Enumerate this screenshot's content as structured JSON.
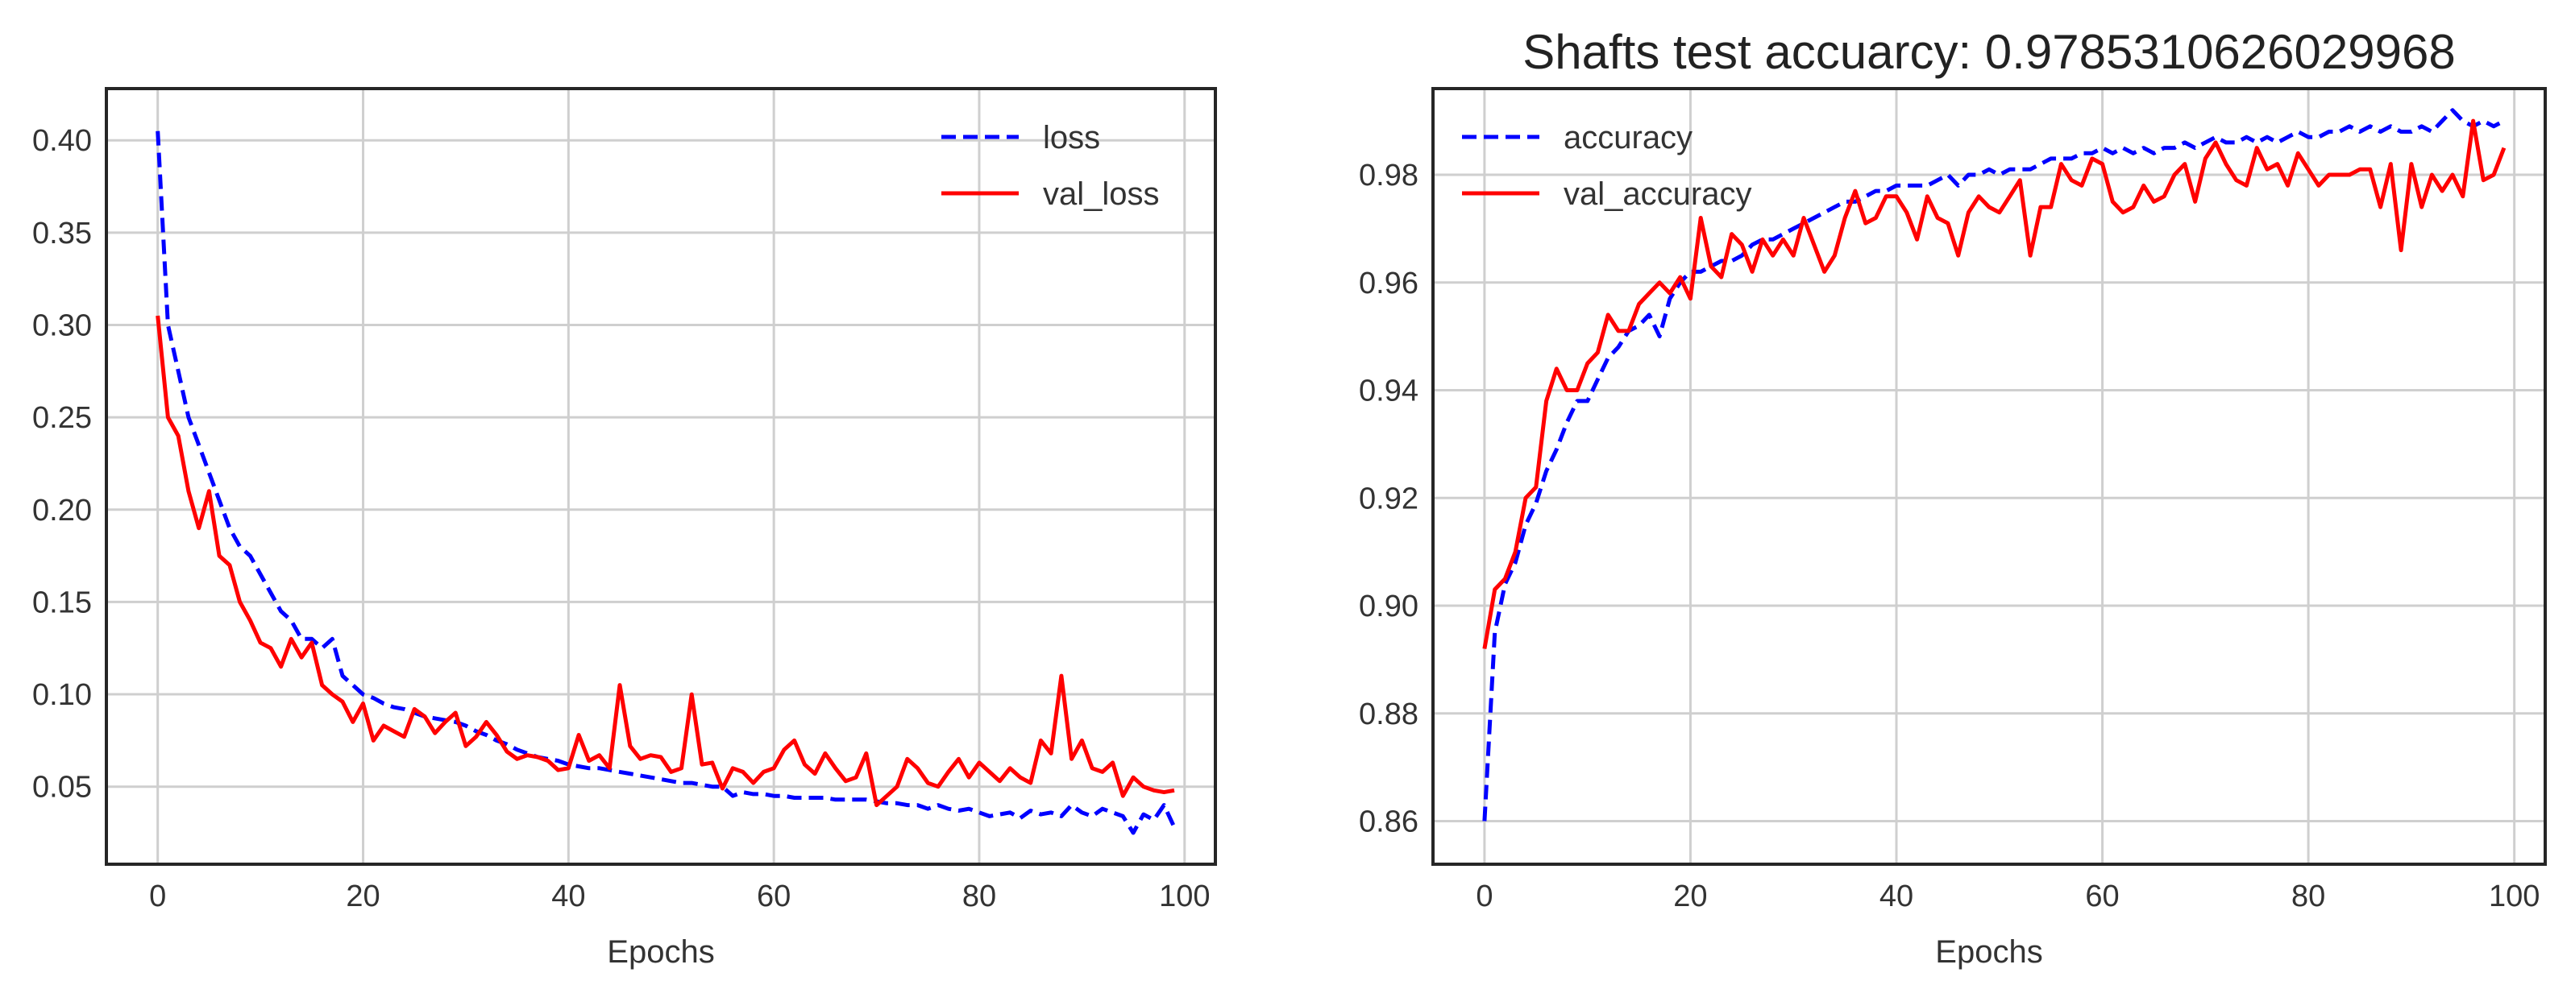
{
  "chart_data": [
    {
      "type": "line",
      "title": "",
      "xlabel": "Epochs",
      "ylabel": "",
      "xlim": [
        -5,
        103
      ],
      "ylim": [
        0.008,
        0.428
      ],
      "xticks": [
        0,
        20,
        40,
        60,
        80,
        100
      ],
      "yticks": [
        0.05,
        0.1,
        0.15,
        0.2,
        0.25,
        0.3,
        0.35,
        0.4
      ],
      "tick_format": 2,
      "grid": true,
      "legend_position": "top-right",
      "series": [
        {
          "name": "loss",
          "color": "#0000ff",
          "dash": "dashed",
          "x": [
            0,
            1,
            2,
            3,
            4,
            5,
            6,
            7,
            8,
            9,
            10,
            11,
            12,
            13,
            14,
            15,
            16,
            17,
            18,
            19,
            20,
            21,
            22,
            23,
            24,
            25,
            26,
            27,
            28,
            29,
            30,
            31,
            32,
            33,
            34,
            35,
            36,
            37,
            38,
            39,
            40,
            41,
            42,
            43,
            44,
            45,
            46,
            47,
            48,
            49,
            50,
            51,
            52,
            53,
            54,
            55,
            56,
            57,
            58,
            59,
            60,
            61,
            62,
            63,
            64,
            65,
            66,
            67,
            68,
            69,
            70,
            71,
            72,
            73,
            74,
            75,
            76,
            77,
            78,
            79,
            80,
            81,
            82,
            83,
            84,
            85,
            86,
            87,
            88,
            89,
            90,
            91,
            92,
            93,
            94,
            95,
            96,
            97,
            98,
            99
          ],
          "values": [
            0.405,
            0.3,
            0.275,
            0.25,
            0.235,
            0.22,
            0.205,
            0.19,
            0.18,
            0.175,
            0.165,
            0.155,
            0.145,
            0.14,
            0.13,
            0.13,
            0.125,
            0.13,
            0.11,
            0.105,
            0.1,
            0.098,
            0.095,
            0.093,
            0.092,
            0.09,
            0.088,
            0.087,
            0.086,
            0.085,
            0.083,
            0.08,
            0.078,
            0.075,
            0.073,
            0.07,
            0.068,
            0.066,
            0.065,
            0.064,
            0.062,
            0.061,
            0.06,
            0.06,
            0.059,
            0.058,
            0.057,
            0.056,
            0.055,
            0.054,
            0.053,
            0.052,
            0.052,
            0.051,
            0.05,
            0.05,
            0.045,
            0.047,
            0.046,
            0.046,
            0.045,
            0.045,
            0.044,
            0.044,
            0.044,
            0.044,
            0.043,
            0.043,
            0.043,
            0.043,
            0.042,
            0.041,
            0.041,
            0.04,
            0.04,
            0.038,
            0.04,
            0.038,
            0.037,
            0.038,
            0.036,
            0.034,
            0.035,
            0.036,
            0.033,
            0.037,
            0.035,
            0.036,
            0.034,
            0.04,
            0.036,
            0.034,
            0.038,
            0.036,
            0.034,
            0.025,
            0.035,
            0.032,
            0.04,
            0.028
          ]
        },
        {
          "name": "val_loss",
          "color": "#ff0000",
          "dash": "solid",
          "x": [
            0,
            1,
            2,
            3,
            4,
            5,
            6,
            7,
            8,
            9,
            10,
            11,
            12,
            13,
            14,
            15,
            16,
            17,
            18,
            19,
            20,
            21,
            22,
            23,
            24,
            25,
            26,
            27,
            28,
            29,
            30,
            31,
            32,
            33,
            34,
            35,
            36,
            37,
            38,
            39,
            40,
            41,
            42,
            43,
            44,
            45,
            46,
            47,
            48,
            49,
            50,
            51,
            52,
            53,
            54,
            55,
            56,
            57,
            58,
            59,
            60,
            61,
            62,
            63,
            64,
            65,
            66,
            67,
            68,
            69,
            70,
            71,
            72,
            73,
            74,
            75,
            76,
            77,
            78,
            79,
            80,
            81,
            82,
            83,
            84,
            85,
            86,
            87,
            88,
            89,
            90,
            91,
            92,
            93,
            94,
            95,
            96,
            97,
            98,
            99
          ],
          "values": [
            0.305,
            0.25,
            0.24,
            0.21,
            0.19,
            0.21,
            0.175,
            0.17,
            0.15,
            0.14,
            0.128,
            0.125,
            0.115,
            0.13,
            0.12,
            0.128,
            0.105,
            0.1,
            0.096,
            0.085,
            0.095,
            0.075,
            0.083,
            0.08,
            0.077,
            0.092,
            0.088,
            0.079,
            0.085,
            0.09,
            0.072,
            0.077,
            0.085,
            0.078,
            0.069,
            0.065,
            0.067,
            0.066,
            0.064,
            0.059,
            0.06,
            0.078,
            0.064,
            0.067,
            0.06,
            0.105,
            0.072,
            0.065,
            0.067,
            0.066,
            0.058,
            0.06,
            0.1,
            0.062,
            0.063,
            0.049,
            0.06,
            0.058,
            0.052,
            0.058,
            0.06,
            0.07,
            0.075,
            0.062,
            0.057,
            0.068,
            0.06,
            0.053,
            0.055,
            0.068,
            0.04,
            0.045,
            0.05,
            0.065,
            0.06,
            0.052,
            0.05,
            0.058,
            0.065,
            0.055,
            0.063,
            0.058,
            0.053,
            0.06,
            0.055,
            0.052,
            0.075,
            0.068,
            0.11,
            0.065,
            0.075,
            0.06,
            0.058,
            0.063,
            0.045,
            0.055,
            0.05,
            0.048,
            0.047,
            0.048
          ]
        }
      ]
    },
    {
      "type": "line",
      "title": "Shafts test accuarcy: 0.9785310626029968",
      "xlabel": "Epochs",
      "ylabel": "",
      "xlim": [
        -5,
        103
      ],
      "ylim": [
        0.852,
        0.996
      ],
      "xticks": [
        0,
        20,
        40,
        60,
        80,
        100
      ],
      "yticks": [
        0.86,
        0.88,
        0.9,
        0.92,
        0.94,
        0.96,
        0.98
      ],
      "tick_format": 2,
      "grid": true,
      "legend_position": "top-left",
      "series": [
        {
          "name": "accuracy",
          "color": "#0000ff",
          "dash": "dashed",
          "x": [
            0,
            1,
            2,
            3,
            4,
            5,
            6,
            7,
            8,
            9,
            10,
            11,
            12,
            13,
            14,
            15,
            16,
            17,
            18,
            19,
            20,
            21,
            22,
            23,
            24,
            25,
            26,
            27,
            28,
            29,
            30,
            31,
            32,
            33,
            34,
            35,
            36,
            37,
            38,
            39,
            40,
            41,
            42,
            43,
            44,
            45,
            46,
            47,
            48,
            49,
            50,
            51,
            52,
            53,
            54,
            55,
            56,
            57,
            58,
            59,
            60,
            61,
            62,
            63,
            64,
            65,
            66,
            67,
            68,
            69,
            70,
            71,
            72,
            73,
            74,
            75,
            76,
            77,
            78,
            79,
            80,
            81,
            82,
            83,
            84,
            85,
            86,
            87,
            88,
            89,
            90,
            91,
            92,
            93,
            94,
            95,
            96,
            97,
            98,
            99
          ],
          "values": [
            0.86,
            0.895,
            0.904,
            0.908,
            0.915,
            0.919,
            0.925,
            0.929,
            0.934,
            0.938,
            0.938,
            0.942,
            0.946,
            0.948,
            0.951,
            0.952,
            0.954,
            0.95,
            0.957,
            0.96,
            0.962,
            0.962,
            0.963,
            0.964,
            0.964,
            0.965,
            0.967,
            0.968,
            0.968,
            0.969,
            0.97,
            0.971,
            0.972,
            0.973,
            0.974,
            0.975,
            0.975,
            0.976,
            0.977,
            0.977,
            0.978,
            0.978,
            0.978,
            0.978,
            0.979,
            0.98,
            0.978,
            0.98,
            0.98,
            0.981,
            0.98,
            0.981,
            0.981,
            0.981,
            0.982,
            0.983,
            0.983,
            0.983,
            0.984,
            0.984,
            0.985,
            0.984,
            0.985,
            0.984,
            0.985,
            0.984,
            0.985,
            0.985,
            0.986,
            0.985,
            0.986,
            0.987,
            0.986,
            0.986,
            0.987,
            0.986,
            0.987,
            0.986,
            0.987,
            0.988,
            0.987,
            0.987,
            0.988,
            0.988,
            0.989,
            0.988,
            0.989,
            0.988,
            0.989,
            0.988,
            0.988,
            0.989,
            0.988,
            0.99,
            0.992,
            0.99,
            0.989,
            0.99,
            0.989,
            0.99
          ]
        },
        {
          "name": "val_accuracy",
          "color": "#ff0000",
          "dash": "solid",
          "x": [
            0,
            1,
            2,
            3,
            4,
            5,
            6,
            7,
            8,
            9,
            10,
            11,
            12,
            13,
            14,
            15,
            16,
            17,
            18,
            19,
            20,
            21,
            22,
            23,
            24,
            25,
            26,
            27,
            28,
            29,
            30,
            31,
            32,
            33,
            34,
            35,
            36,
            37,
            38,
            39,
            40,
            41,
            42,
            43,
            44,
            45,
            46,
            47,
            48,
            49,
            50,
            51,
            52,
            53,
            54,
            55,
            56,
            57,
            58,
            59,
            60,
            61,
            62,
            63,
            64,
            65,
            66,
            67,
            68,
            69,
            70,
            71,
            72,
            73,
            74,
            75,
            76,
            77,
            78,
            79,
            80,
            81,
            82,
            83,
            84,
            85,
            86,
            87,
            88,
            89,
            90,
            91,
            92,
            93,
            94,
            95,
            96,
            97,
            98,
            99
          ],
          "values": [
            0.892,
            0.903,
            0.905,
            0.91,
            0.92,
            0.922,
            0.938,
            0.944,
            0.94,
            0.94,
            0.945,
            0.947,
            0.954,
            0.951,
            0.951,
            0.956,
            0.958,
            0.96,
            0.958,
            0.961,
            0.957,
            0.972,
            0.963,
            0.961,
            0.969,
            0.967,
            0.962,
            0.968,
            0.965,
            0.968,
            0.965,
            0.972,
            0.967,
            0.962,
            0.965,
            0.972,
            0.977,
            0.971,
            0.972,
            0.976,
            0.976,
            0.973,
            0.968,
            0.976,
            0.972,
            0.971,
            0.965,
            0.973,
            0.976,
            0.974,
            0.973,
            0.976,
            0.979,
            0.965,
            0.974,
            0.974,
            0.982,
            0.979,
            0.978,
            0.983,
            0.982,
            0.975,
            0.973,
            0.974,
            0.978,
            0.975,
            0.976,
            0.98,
            0.982,
            0.975,
            0.983,
            0.986,
            0.982,
            0.979,
            0.978,
            0.985,
            0.981,
            0.982,
            0.978,
            0.984,
            0.981,
            0.978,
            0.98,
            0.98,
            0.98,
            0.981,
            0.981,
            0.974,
            0.982,
            0.966,
            0.982,
            0.974,
            0.98,
            0.977,
            0.98,
            0.976,
            0.99,
            0.979,
            0.98,
            0.985
          ]
        }
      ]
    }
  ]
}
